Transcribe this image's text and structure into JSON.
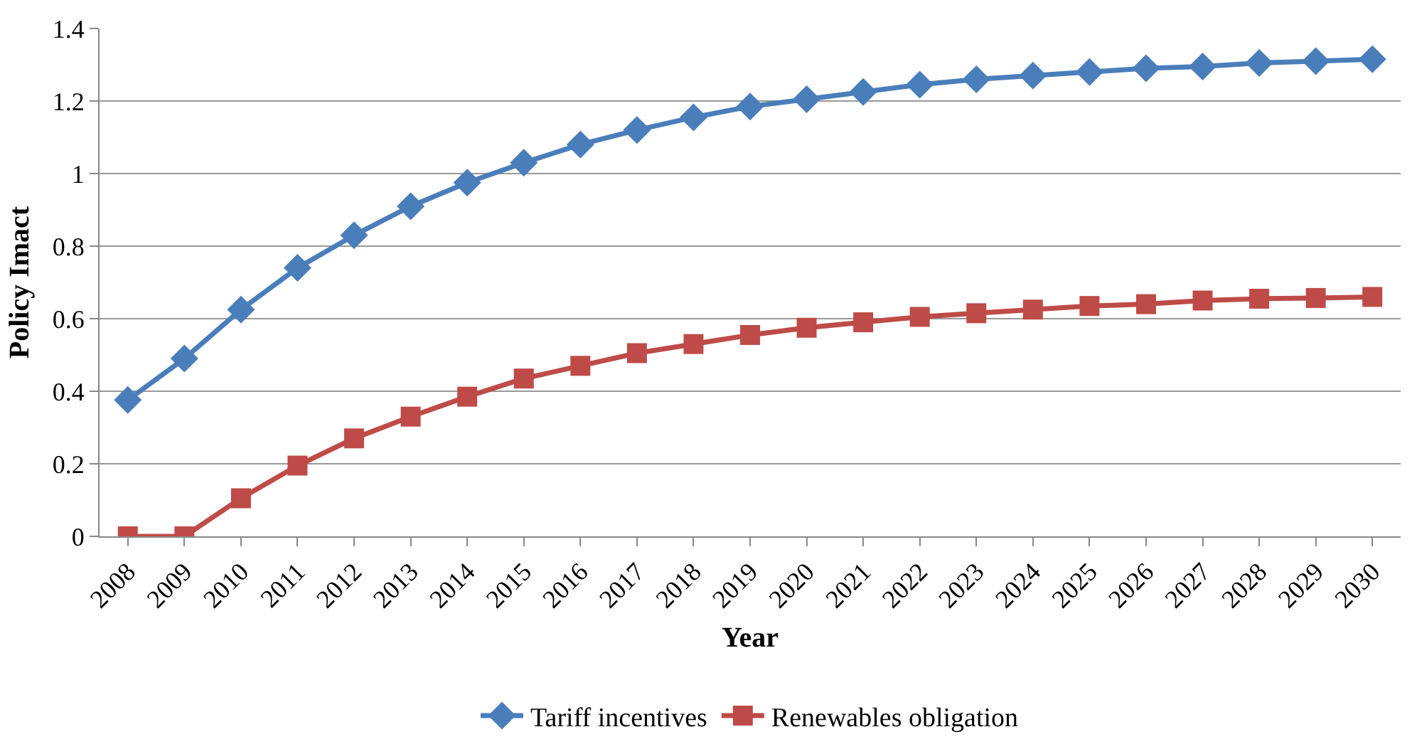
{
  "chart_data": {
    "type": "line",
    "xlabel": "Year",
    "ylabel": "Policy Imact",
    "categories": [
      "2008",
      "2009",
      "2010",
      "2011",
      "2012",
      "2013",
      "2014",
      "2015",
      "2016",
      "2017",
      "2018",
      "2019",
      "2020",
      "2021",
      "2022",
      "2023",
      "2024",
      "2025",
      "2026",
      "2027",
      "2028",
      "2029",
      "2030"
    ],
    "series": [
      {
        "name": "Tariff incentives",
        "color": "#4a7ebb",
        "marker": "diamond",
        "values": [
          0.376,
          0.49,
          0.625,
          0.74,
          0.83,
          0.91,
          0.975,
          1.03,
          1.08,
          1.12,
          1.155,
          1.185,
          1.205,
          1.225,
          1.245,
          1.26,
          1.27,
          1.28,
          1.29,
          1.295,
          1.305,
          1.31,
          1.315
        ]
      },
      {
        "name": "Renewables obligation",
        "color": "#be4b48",
        "marker": "square",
        "values": [
          0,
          0,
          0.105,
          0.195,
          0.27,
          0.33,
          0.385,
          0.435,
          0.47,
          0.505,
          0.53,
          0.555,
          0.575,
          0.59,
          0.605,
          0.615,
          0.625,
          0.635,
          0.64,
          0.65,
          0.655,
          0.657,
          0.66
        ]
      }
    ],
    "ylim": [
      0,
      1.4
    ],
    "yticks": [
      0,
      0.2,
      0.4,
      0.6,
      0.8,
      1,
      1.2,
      1.4
    ],
    "grid": "y",
    "legend": "bottom",
    "line_style": "solid"
  }
}
